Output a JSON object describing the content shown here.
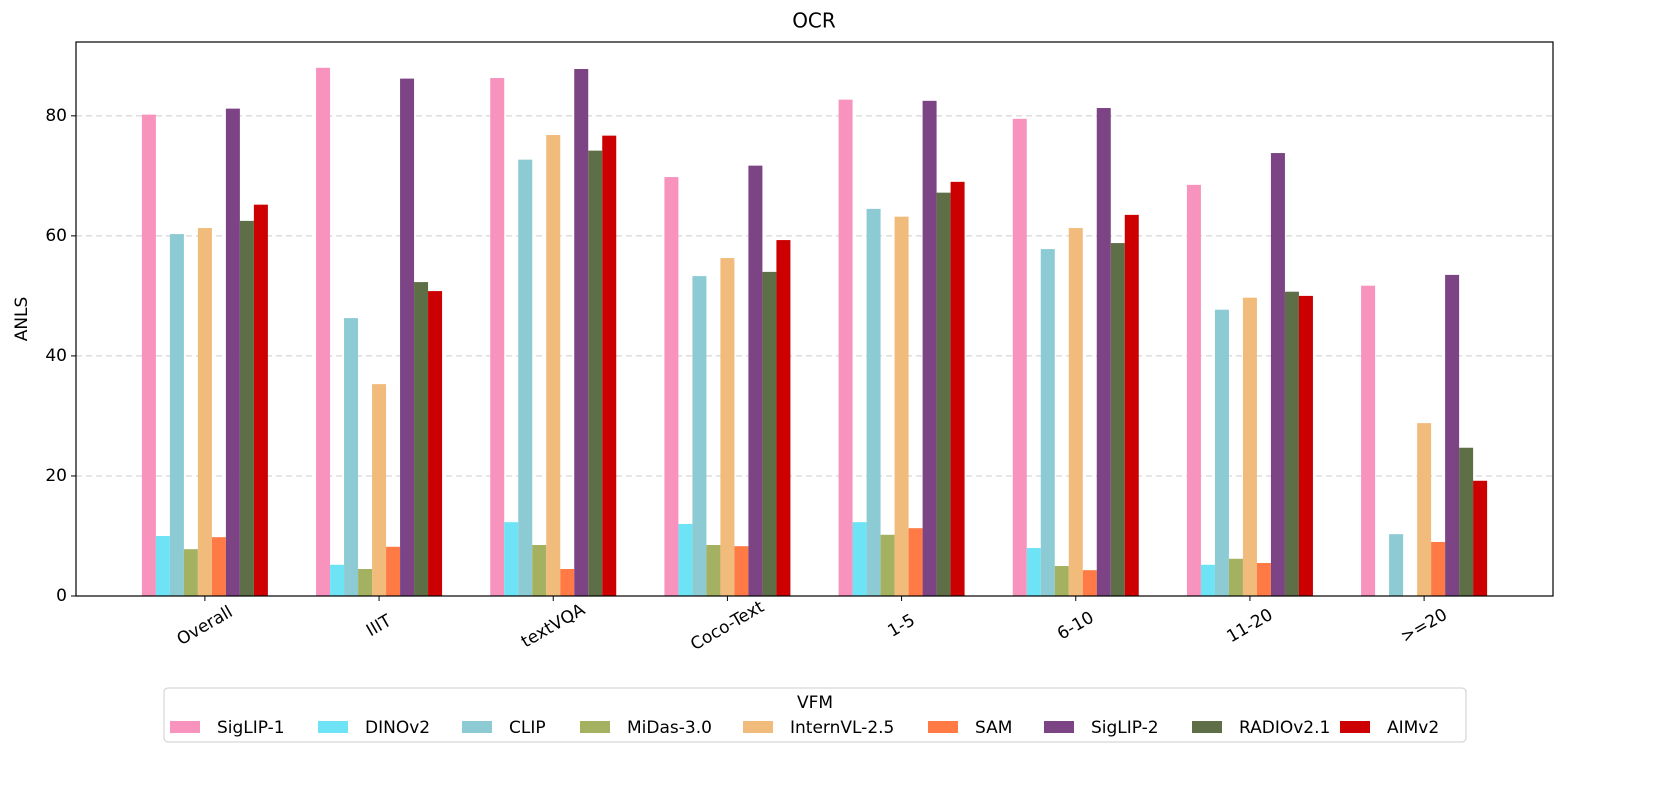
{
  "chart_data": {
    "type": "bar",
    "title": "OCR",
    "y_label": "ANLS",
    "categories": [
      "Overall",
      "IIIT",
      "textVQA",
      "Coco-Text",
      "1-5",
      "6-10",
      "11-20",
      ">=20"
    ],
    "series": [
      {
        "name": "SigLIP-1",
        "color": "#f893bd",
        "values": [
          80.2,
          88.0,
          86.3,
          69.8,
          82.7,
          79.5,
          68.5,
          51.7
        ]
      },
      {
        "name": "DINOv2",
        "color": "#6ee3f5",
        "values": [
          10.0,
          5.2,
          12.3,
          12.0,
          12.3,
          8.0,
          5.2,
          0
        ]
      },
      {
        "name": "CLIP",
        "color": "#8ccbd3",
        "values": [
          60.3,
          46.3,
          72.7,
          53.3,
          64.5,
          57.8,
          47.7,
          10.3
        ]
      },
      {
        "name": "MiDas-3.0",
        "color": "#a3b160",
        "values": [
          7.8,
          4.5,
          8.5,
          8.5,
          10.2,
          5.0,
          6.2,
          0
        ]
      },
      {
        "name": "InternVL-2.5",
        "color": "#f0bb7b",
        "values": [
          61.3,
          35.3,
          76.8,
          56.3,
          63.2,
          61.3,
          49.7,
          28.8
        ]
      },
      {
        "name": "SAM",
        "color": "#ff7a45",
        "values": [
          9.8,
          8.2,
          4.5,
          8.3,
          11.3,
          4.3,
          5.5,
          9.0
        ]
      },
      {
        "name": "SigLIP-2",
        "color": "#7c4484",
        "values": [
          81.2,
          86.2,
          87.8,
          71.7,
          82.5,
          81.3,
          73.8,
          53.5
        ]
      },
      {
        "name": "RADIOv2.1",
        "color": "#5e6e47",
        "values": [
          62.5,
          52.3,
          74.2,
          54.0,
          67.2,
          58.8,
          50.7,
          24.7
        ]
      },
      {
        "name": "AIMv2",
        "color": "#cc0000",
        "values": [
          65.2,
          50.8,
          76.7,
          59.3,
          69.0,
          63.5,
          50.0,
          19.2
        ]
      }
    ],
    "ylim": [
      0,
      92.3
    ],
    "yticks": [
      0,
      20,
      40,
      60,
      80
    ],
    "grid": true,
    "legend_title": "VFM",
    "legend": "bottom"
  }
}
